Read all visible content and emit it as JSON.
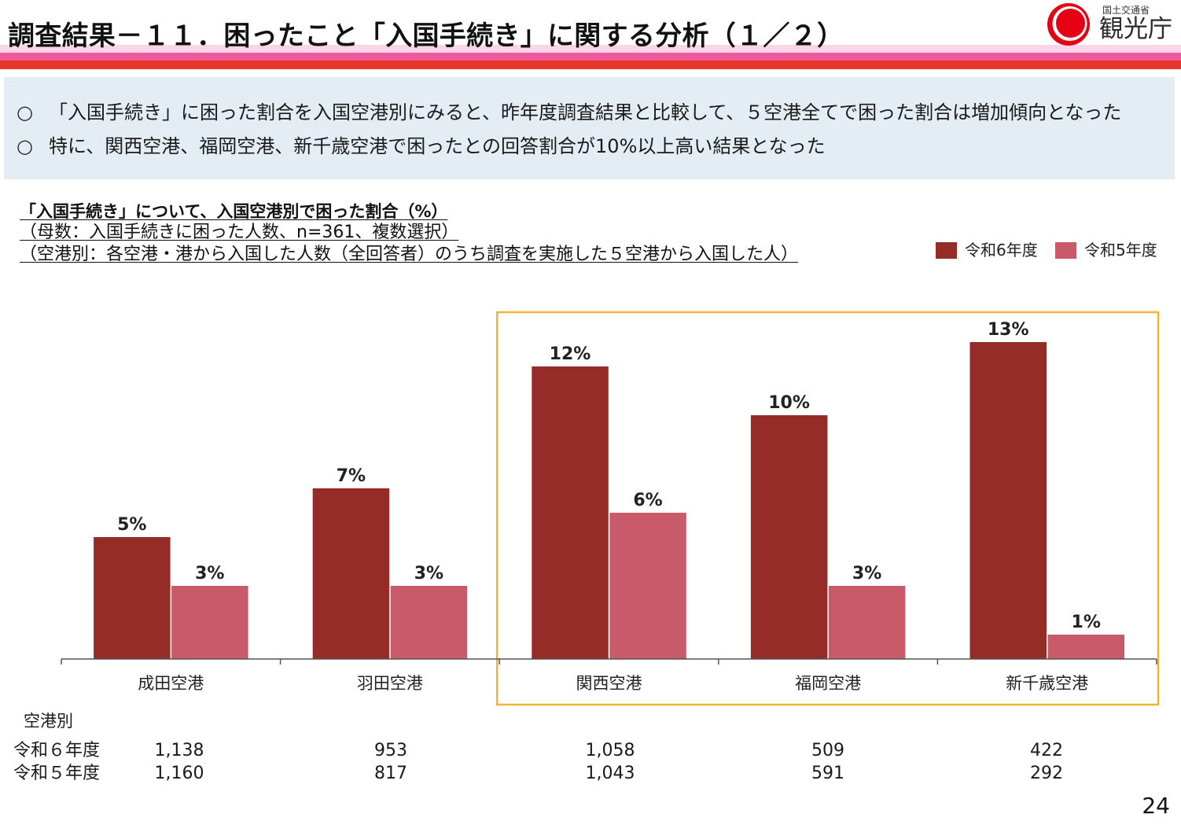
{
  "slide": {
    "title": "調査結果－１１．困ったこと「入国手続き」に関する分析（１／２）",
    "page_number": "24"
  },
  "logo": {
    "ministry": "国土交通省",
    "agency": "観光庁"
  },
  "summary": {
    "items": [
      {
        "marker": "○",
        "text": "「入国手続き」に困った割合を入国空港別にみると、昨年度調査結果と比較して、５空港全てで困った割合は増加傾向となった"
      },
      {
        "marker": "○",
        "text": "特に、関西空港、福岡空港、新千歳空港で困ったとの回答割合が10%以上高い結果となった"
      }
    ]
  },
  "chart_data": {
    "type": "bar",
    "title": "「入国手続き」について、入国空港別で困った割合（%）",
    "notes": [
      "（母数：入国手続きに困った人数、n=361、複数選択）",
      "（空港別：各空港・港から入国した人数（全回答者）のうち調査を実施した５空港から入国した人）"
    ],
    "categories": [
      "成田空港",
      "羽田空港",
      "関西空港",
      "福岡空港",
      "新千歳空港"
    ],
    "series": [
      {
        "name": "令和6年度",
        "values": [
          5,
          7,
          12,
          10,
          13
        ],
        "labels": [
          "5%",
          "7%",
          "12%",
          "10%",
          "13%"
        ],
        "color": "#962c28"
      },
      {
        "name": "令和5年度",
        "values": [
          3,
          3,
          6,
          3,
          1
        ],
        "labels": [
          "3%",
          "3%",
          "6%",
          "3%",
          "1%"
        ],
        "color": "#c95a69"
      }
    ],
    "legend": "top-right",
    "grid": false,
    "highlighted": [
      false,
      false,
      true,
      true,
      true
    ],
    "highlight_color": "#f5b335"
  },
  "sample_sizes": {
    "heading": "空港別",
    "rows": [
      {
        "label": "令和６年度",
        "values": [
          "1,138",
          "953",
          "1,058",
          "509",
          "422"
        ]
      },
      {
        "label": "令和５年度",
        "values": [
          "1,160",
          "817",
          "1,043",
          "591",
          "292"
        ]
      }
    ]
  },
  "theme": {
    "title_band_light": "#fcd6e8",
    "title_band_pink": "#ee5a9b",
    "title_band_red": "#e6352a",
    "summary_background": "#e3edf3",
    "logo_red": "#e60012"
  }
}
